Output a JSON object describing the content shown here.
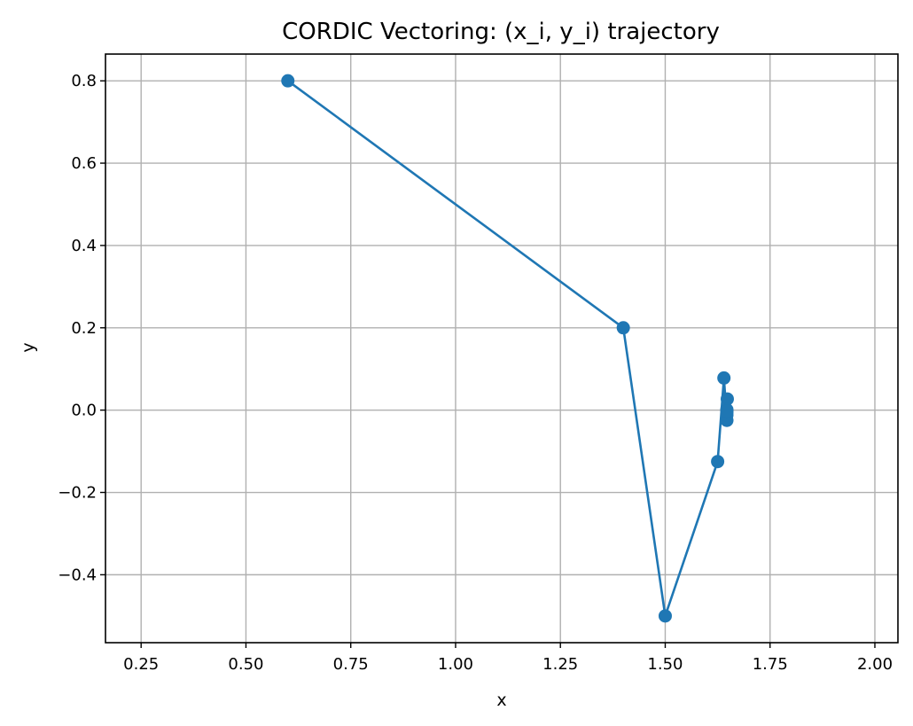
{
  "chart_data": {
    "type": "line",
    "title": "CORDIC Vectoring: (x_i, y_i) trajectory",
    "xlabel": "x",
    "ylabel": "y",
    "xlim": [
      0.165,
      2.055
    ],
    "ylim": [
      -0.565,
      0.865
    ],
    "xticks": [
      0.25,
      0.5,
      0.75,
      1.0,
      1.25,
      1.5,
      1.75,
      2.0
    ],
    "xtick_labels": [
      "0.25",
      "0.50",
      "0.75",
      "1.00",
      "1.25",
      "1.50",
      "1.75",
      "2.00"
    ],
    "yticks": [
      -0.4,
      -0.2,
      0.0,
      0.2,
      0.4,
      0.6,
      0.8
    ],
    "ytick_labels": [
      "−0.4",
      "−0.2",
      "0.0",
      "0.2",
      "0.4",
      "0.6",
      "0.8"
    ],
    "grid": true,
    "series": [
      {
        "color": "#1f77b4",
        "marker": "circle",
        "x": [
          0.6,
          1.4,
          1.5,
          1.625,
          1.64,
          1.647,
          1.648,
          1.647,
          1.647,
          1.647,
          1.647
        ],
        "y": [
          0.8,
          0.2,
          -0.5,
          -0.125,
          0.078,
          -0.025,
          0.027,
          0.001,
          -0.012,
          -0.005,
          -0.002
        ]
      }
    ]
  }
}
